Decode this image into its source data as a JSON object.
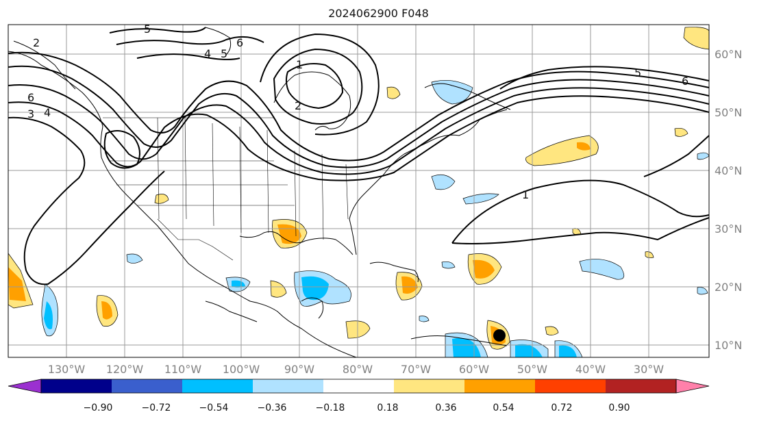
{
  "title": "2024062900 F048",
  "map": {
    "lat_labels": [
      "60°N",
      "50°N",
      "40°N",
      "30°N",
      "20°N",
      "10°N"
    ],
    "lon_labels": [
      "130°W",
      "120°W",
      "110°W",
      "100°W",
      "90°W",
      "80°W",
      "70°W",
      "60°W",
      "50°W",
      "40°W",
      "30°W"
    ],
    "contour_labels": [
      "2",
      "5",
      "6",
      "4",
      "5",
      "1",
      "2",
      "1",
      "5",
      "6",
      "3",
      "4",
      "6"
    ],
    "marker": "storm-center-dot"
  },
  "colorbar": {
    "ticks": [
      "−0.90",
      "−0.72",
      "−0.54",
      "−0.36",
      "−0.18",
      "0.18",
      "0.36",
      "0.54",
      "0.72",
      "0.90"
    ],
    "colors": [
      "#9b30d0",
      "#00008b",
      "#3a5fcd",
      "#00bfff",
      "#b0e2ff",
      "#ffffff",
      "#ffe680",
      "#ffa000",
      "#ff4000",
      "#b22222",
      "#ff80aa"
    ]
  }
}
